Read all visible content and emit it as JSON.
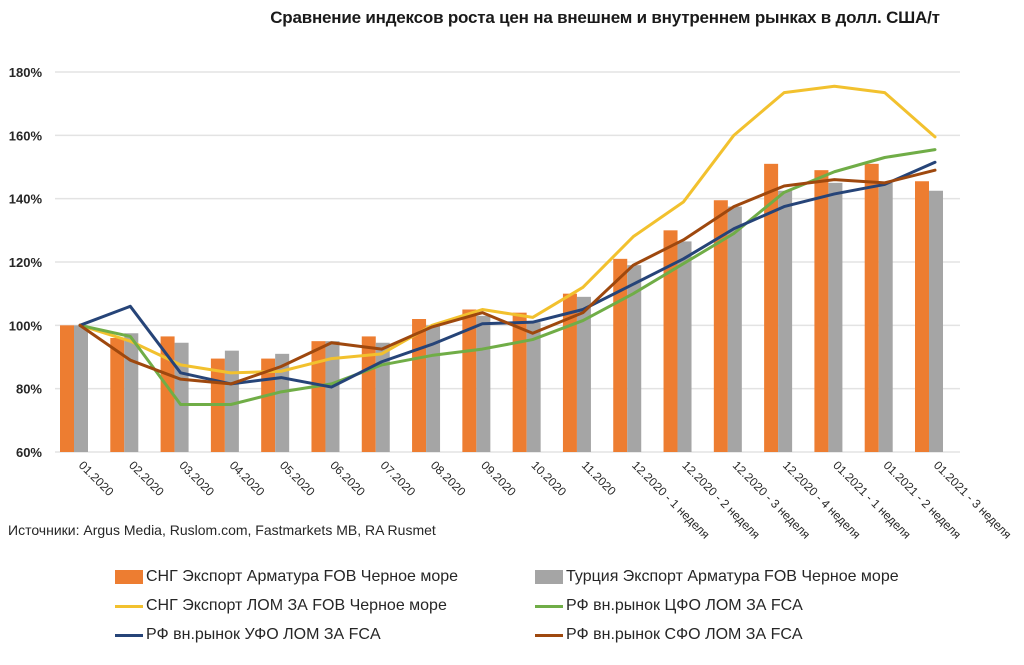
{
  "chart_data": {
    "type": "bar+line",
    "title": "Сравнение индексов роста цен на внешнем и внутреннем рынках в долл. США/т",
    "xlabel": "",
    "ylabel": "",
    "ylim": [
      60,
      180
    ],
    "yticks": [
      60,
      80,
      100,
      120,
      140,
      160,
      180
    ],
    "ytick_labels": [
      "60%",
      "80%",
      "100%",
      "120%",
      "140%",
      "160%",
      "180%"
    ],
    "grid": true,
    "legend_position": "bottom",
    "categories": [
      "01.2020",
      "02.2020",
      "03.2020",
      "04.2020",
      "05.2020",
      "06.2020",
      "07.2020",
      "08.2020",
      "09.2020",
      "10.2020",
      "11.2020",
      "12.2020 - 1 неделя",
      "12.2020 - 2 неделя",
      "12.2020 - 3 неделя",
      "12.2020 - 4 неделя",
      "01.2021 - 1 неделя",
      "01.2021 - 2 неделя",
      "01.2021 - 3 неделя"
    ],
    "series": [
      {
        "name": "СНГ Экспорт Арматура FOB Черное море",
        "kind": "bar",
        "color": "#ED7D31",
        "values": [
          100,
          96,
          96.5,
          89.5,
          89.5,
          95,
          96.5,
          102,
          105,
          104,
          110,
          121,
          130,
          139.5,
          151,
          149,
          151,
          145.5
        ]
      },
      {
        "name": "Турция Экспорт Арматура FOB Черное море",
        "kind": "bar",
        "color": "#A5A5A5",
        "values": [
          100,
          97.5,
          94.5,
          92,
          91,
          95,
          94.5,
          100,
          103,
          101,
          109,
          119,
          126.5,
          137.5,
          142.5,
          145,
          145,
          142.5
        ]
      },
      {
        "name": "СНГ Экспорт ЛОМ ЗА FOB Черное море",
        "kind": "line",
        "color": "#F2C12E",
        "values": [
          100,
          95,
          87.5,
          85,
          85.5,
          89.5,
          91,
          100,
          105,
          102.5,
          112,
          128,
          139,
          160,
          173.5,
          175.5,
          173.5,
          159.5
        ]
      },
      {
        "name": "РФ вн.рынок ЦФО ЛОМ ЗА FCA",
        "kind": "line",
        "color": "#70AD47",
        "values": [
          100,
          96.5,
          75,
          75,
          79,
          81.5,
          87.5,
          90.5,
          92.5,
          95.5,
          101.5,
          110,
          119.5,
          129,
          142,
          148.5,
          153,
          155.5
        ]
      },
      {
        "name": "РФ вн.рынок УФО ЛОМ ЗА FCA",
        "kind": "line",
        "color": "#264478",
        "values": [
          100,
          106,
          85,
          81.5,
          83.5,
          80.5,
          88.5,
          94,
          100.5,
          101,
          105,
          113,
          121,
          130.5,
          137.5,
          141.5,
          144.5,
          151.5
        ]
      },
      {
        "name": "РФ вн.рынок СФО ЛОМ ЗА FCA",
        "kind": "line",
        "color": "#9E480E",
        "values": [
          100,
          89,
          83,
          81.5,
          87,
          94.5,
          92.5,
          99.5,
          104,
          97.5,
          104,
          119,
          127,
          137.5,
          144,
          146,
          145,
          149
        ]
      }
    ],
    "source_note": "Источники: Argus Media, Ruslom.com, Fastmarkets MB,  RA Rusmet"
  }
}
